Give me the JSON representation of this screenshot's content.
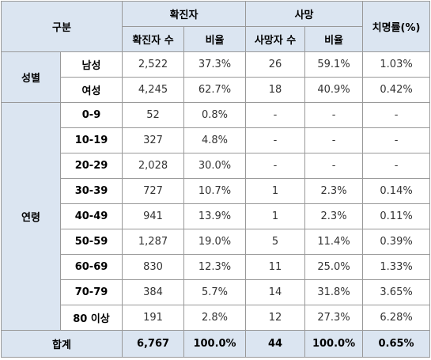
{
  "header": {
    "category": "구분",
    "confirmed": "확진자",
    "deaths": "사망",
    "fatality_rate": "치명률(%)",
    "confirmed_count": "확진자 수",
    "confirmed_ratio": "비율",
    "death_count": "사망자 수",
    "death_ratio": "비율"
  },
  "gender": {
    "group_label": "성별",
    "rows": [
      {
        "label": "남성",
        "confirmed": "2,522",
        "confirmed_ratio": "37.3%",
        "deaths": "26",
        "death_ratio": "59.1%",
        "fatality": "1.03%"
      },
      {
        "label": "여성",
        "confirmed": "4,245",
        "confirmed_ratio": "62.7%",
        "deaths": "18",
        "death_ratio": "40.9%",
        "fatality": "0.42%"
      }
    ]
  },
  "age": {
    "group_label": "연령",
    "rows": [
      {
        "label": "0-9",
        "confirmed": "52",
        "confirmed_ratio": "0.8%",
        "deaths": "-",
        "death_ratio": "-",
        "fatality": "-"
      },
      {
        "label": "10-19",
        "confirmed": "327",
        "confirmed_ratio": "4.8%",
        "deaths": "-",
        "death_ratio": "-",
        "fatality": "-"
      },
      {
        "label": "20-29",
        "confirmed": "2,028",
        "confirmed_ratio": "30.0%",
        "deaths": "-",
        "death_ratio": "-",
        "fatality": "-"
      },
      {
        "label": "30-39",
        "confirmed": "727",
        "confirmed_ratio": "10.7%",
        "deaths": "1",
        "death_ratio": "2.3%",
        "fatality": "0.14%"
      },
      {
        "label": "40-49",
        "confirmed": "941",
        "confirmed_ratio": "13.9%",
        "deaths": "1",
        "death_ratio": "2.3%",
        "fatality": "0.11%"
      },
      {
        "label": "50-59",
        "confirmed": "1,287",
        "confirmed_ratio": "19.0%",
        "deaths": "5",
        "death_ratio": "11.4%",
        "fatality": "0.39%"
      },
      {
        "label": "60-69",
        "confirmed": "830",
        "confirmed_ratio": "12.3%",
        "deaths": "11",
        "death_ratio": "25.0%",
        "fatality": "1.33%"
      },
      {
        "label": "70-79",
        "confirmed": "384",
        "confirmed_ratio": "5.7%",
        "deaths": "14",
        "death_ratio": "31.8%",
        "fatality": "3.65%"
      },
      {
        "label": "80 이상",
        "confirmed": "191",
        "confirmed_ratio": "2.8%",
        "deaths": "12",
        "death_ratio": "27.3%",
        "fatality": "6.28%"
      }
    ]
  },
  "total": {
    "label": "합계",
    "confirmed": "6,767",
    "confirmed_ratio": "100.0%",
    "deaths": "44",
    "death_ratio": "100.0%",
    "fatality": "0.65%"
  },
  "colors": {
    "header_fill": "#dbe5f1",
    "border": "#999999",
    "text": "#333333"
  }
}
